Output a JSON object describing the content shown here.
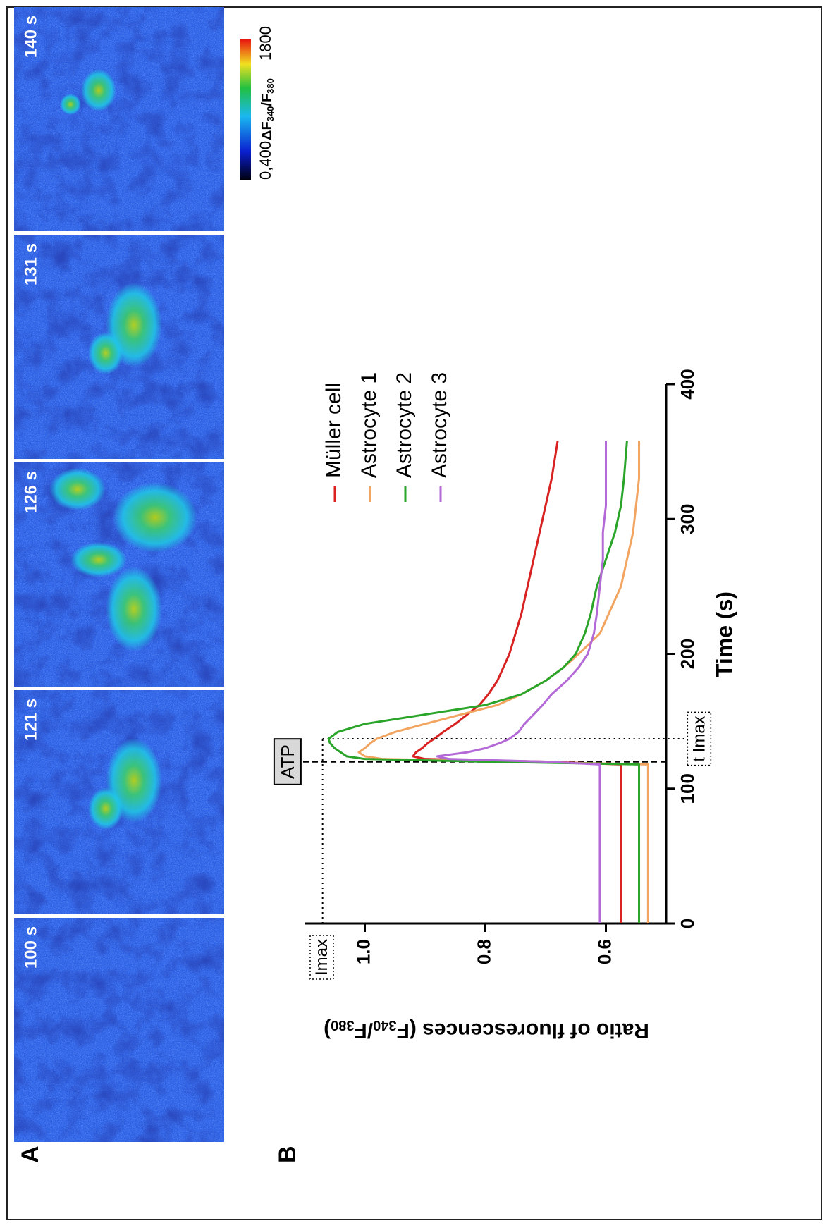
{
  "panel_labels": [
    "A",
    "B"
  ],
  "images": {
    "frames": [
      "100 s",
      "121 s",
      "126 s",
      "131 s",
      "140 s"
    ],
    "colorbar": {
      "min": "0,400",
      "max": "1800",
      "label": [
        "ΔF",
        "340",
        "/F",
        "380"
      ]
    }
  },
  "chart_data": {
    "type": "line",
    "xlabel": "Time (s)",
    "ylabel": [
      "Ratio of fluorescences (F",
      "340",
      "/F",
      "380",
      ")"
    ],
    "x": [
      0,
      20,
      40,
      60,
      80,
      100,
      118,
      120,
      122,
      124,
      127,
      130,
      134,
      137,
      142,
      148,
      155,
      162,
      170,
      180,
      190,
      200,
      215,
      230,
      250,
      270,
      290,
      310,
      330,
      358
    ],
    "series": [
      {
        "name": "Müller cell",
        "color": "#d92222",
        "values": [
          0.575,
          0.575,
          0.575,
          0.575,
          0.575,
          0.575,
          0.575,
          0.7,
          0.9,
          0.92,
          0.915,
          0.905,
          0.895,
          0.885,
          0.87,
          0.85,
          0.83,
          0.81,
          0.795,
          0.78,
          0.77,
          0.76,
          0.75,
          0.74,
          0.73,
          0.72,
          0.71,
          0.7,
          0.69,
          0.68
        ]
      },
      {
        "name": "Astrocyte 1",
        "color": "#f2a561",
        "values": [
          0.53,
          0.53,
          0.53,
          0.53,
          0.53,
          0.53,
          0.53,
          0.75,
          0.97,
          1.0,
          1.01,
          1.0,
          0.99,
          0.98,
          0.95,
          0.9,
          0.84,
          0.78,
          0.74,
          0.7,
          0.67,
          0.645,
          0.61,
          0.595,
          0.575,
          0.565,
          0.555,
          0.55,
          0.545,
          0.545
        ]
      },
      {
        "name": "Astrocyte 2",
        "color": "#2aa52a",
        "values": [
          0.545,
          0.545,
          0.545,
          0.545,
          0.545,
          0.545,
          0.545,
          0.8,
          1.0,
          1.03,
          1.04,
          1.05,
          1.058,
          1.06,
          1.045,
          1.0,
          0.9,
          0.8,
          0.74,
          0.7,
          0.67,
          0.65,
          0.635,
          0.625,
          0.615,
          0.6,
          0.585,
          0.575,
          0.57,
          0.565
        ]
      },
      {
        "name": "Astrocyte 3",
        "color": "#b36ad6",
        "values": [
          0.61,
          0.61,
          0.61,
          0.61,
          0.61,
          0.61,
          0.61,
          0.7,
          0.86,
          0.88,
          0.83,
          0.8,
          0.775,
          0.76,
          0.745,
          0.735,
          0.72,
          0.705,
          0.69,
          0.665,
          0.645,
          0.63,
          0.62,
          0.615,
          0.61,
          0.605,
          0.605,
          0.6,
          0.6,
          0.6
        ]
      }
    ],
    "xlim": [
      0,
      400
    ],
    "xticks": [
      0,
      100,
      200,
      300,
      400
    ],
    "ylim": [
      0.5,
      1.1
    ],
    "yticks": [
      0.6,
      0.8,
      {
        "value": 1.0,
        "label": "1.0"
      }
    ],
    "annotations": [
      {
        "label": "ATP",
        "x": 120
      },
      {
        "label": "t Imax",
        "x": 137
      },
      {
        "label": "Imax",
        "y": 1.07
      }
    ]
  }
}
